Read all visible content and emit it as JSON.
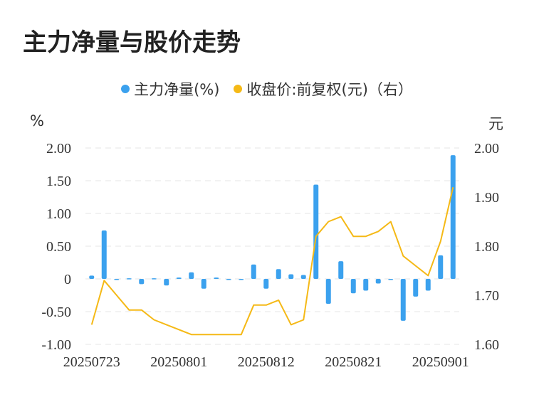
{
  "title": "主力净量与股价走势",
  "legend": [
    {
      "label": "主力净量(%)",
      "color": "#3ba1ee"
    },
    {
      "label": "收盘价:前复权(元)（右）",
      "color": "#f5b916"
    }
  ],
  "units": {
    "left": "%",
    "right": "元"
  },
  "chart_data": {
    "type": "bar+line",
    "categories": [
      "20250723",
      "20250724",
      "20250725",
      "20250728",
      "20250729",
      "20250730",
      "20250731",
      "20250801",
      "20250804",
      "20250805",
      "20250806",
      "20250807",
      "20250808",
      "20250811",
      "20250812",
      "20250813",
      "20250814",
      "20250815",
      "20250818",
      "20250819",
      "20250820",
      "20250821",
      "20250822",
      "20250825",
      "20250826",
      "20250827",
      "20250828",
      "20250829",
      "20250901",
      "20250902"
    ],
    "x_tick_labels": [
      "20250723",
      "20250801",
      "20250812",
      "20250821",
      "20250901"
    ],
    "x_tick_indices": [
      0,
      7,
      14,
      21,
      28
    ],
    "series": [
      {
        "name": "主力净量(%)",
        "type": "bar",
        "axis": "left",
        "color": "#3ba1ee",
        "values": [
          0.05,
          0.74,
          -0.01,
          0.01,
          -0.08,
          0.01,
          -0.1,
          0.02,
          0.1,
          -0.15,
          0.02,
          0.0,
          -0.01,
          0.22,
          -0.15,
          0.15,
          0.07,
          0.06,
          1.44,
          -0.38,
          0.27,
          -0.22,
          -0.18,
          -0.07,
          -0.01,
          -0.64,
          -0.27,
          -0.18,
          0.36,
          1.89
        ]
      },
      {
        "name": "收盘价:前复权(元)（右）",
        "type": "line",
        "axis": "right",
        "color": "#f5b916",
        "values": [
          1.64,
          1.73,
          1.7,
          1.67,
          1.67,
          1.65,
          1.64,
          1.63,
          1.62,
          1.62,
          1.62,
          1.62,
          1.62,
          1.68,
          1.68,
          1.69,
          1.64,
          1.65,
          1.82,
          1.85,
          1.86,
          1.82,
          1.82,
          1.83,
          1.85,
          1.78,
          1.76,
          1.74,
          1.81,
          1.92
        ]
      }
    ],
    "y_left": {
      "min": -1.0,
      "max": 2.0,
      "ticks": [
        -1.0,
        -0.5,
        0,
        0.5,
        1.0,
        1.5,
        2.0
      ],
      "tick_labels": [
        "-1.00",
        "-0.50",
        "0",
        "0.50",
        "1.00",
        "1.50",
        "2.00"
      ]
    },
    "y_right": {
      "min": 1.6,
      "max": 2.0,
      "ticks": [
        1.6,
        1.7,
        1.8,
        1.9,
        2.0
      ],
      "tick_labels": [
        "1.60",
        "1.70",
        "1.80",
        "1.90",
        "2.00"
      ]
    },
    "grid": true,
    "legend_position": "top-center"
  }
}
